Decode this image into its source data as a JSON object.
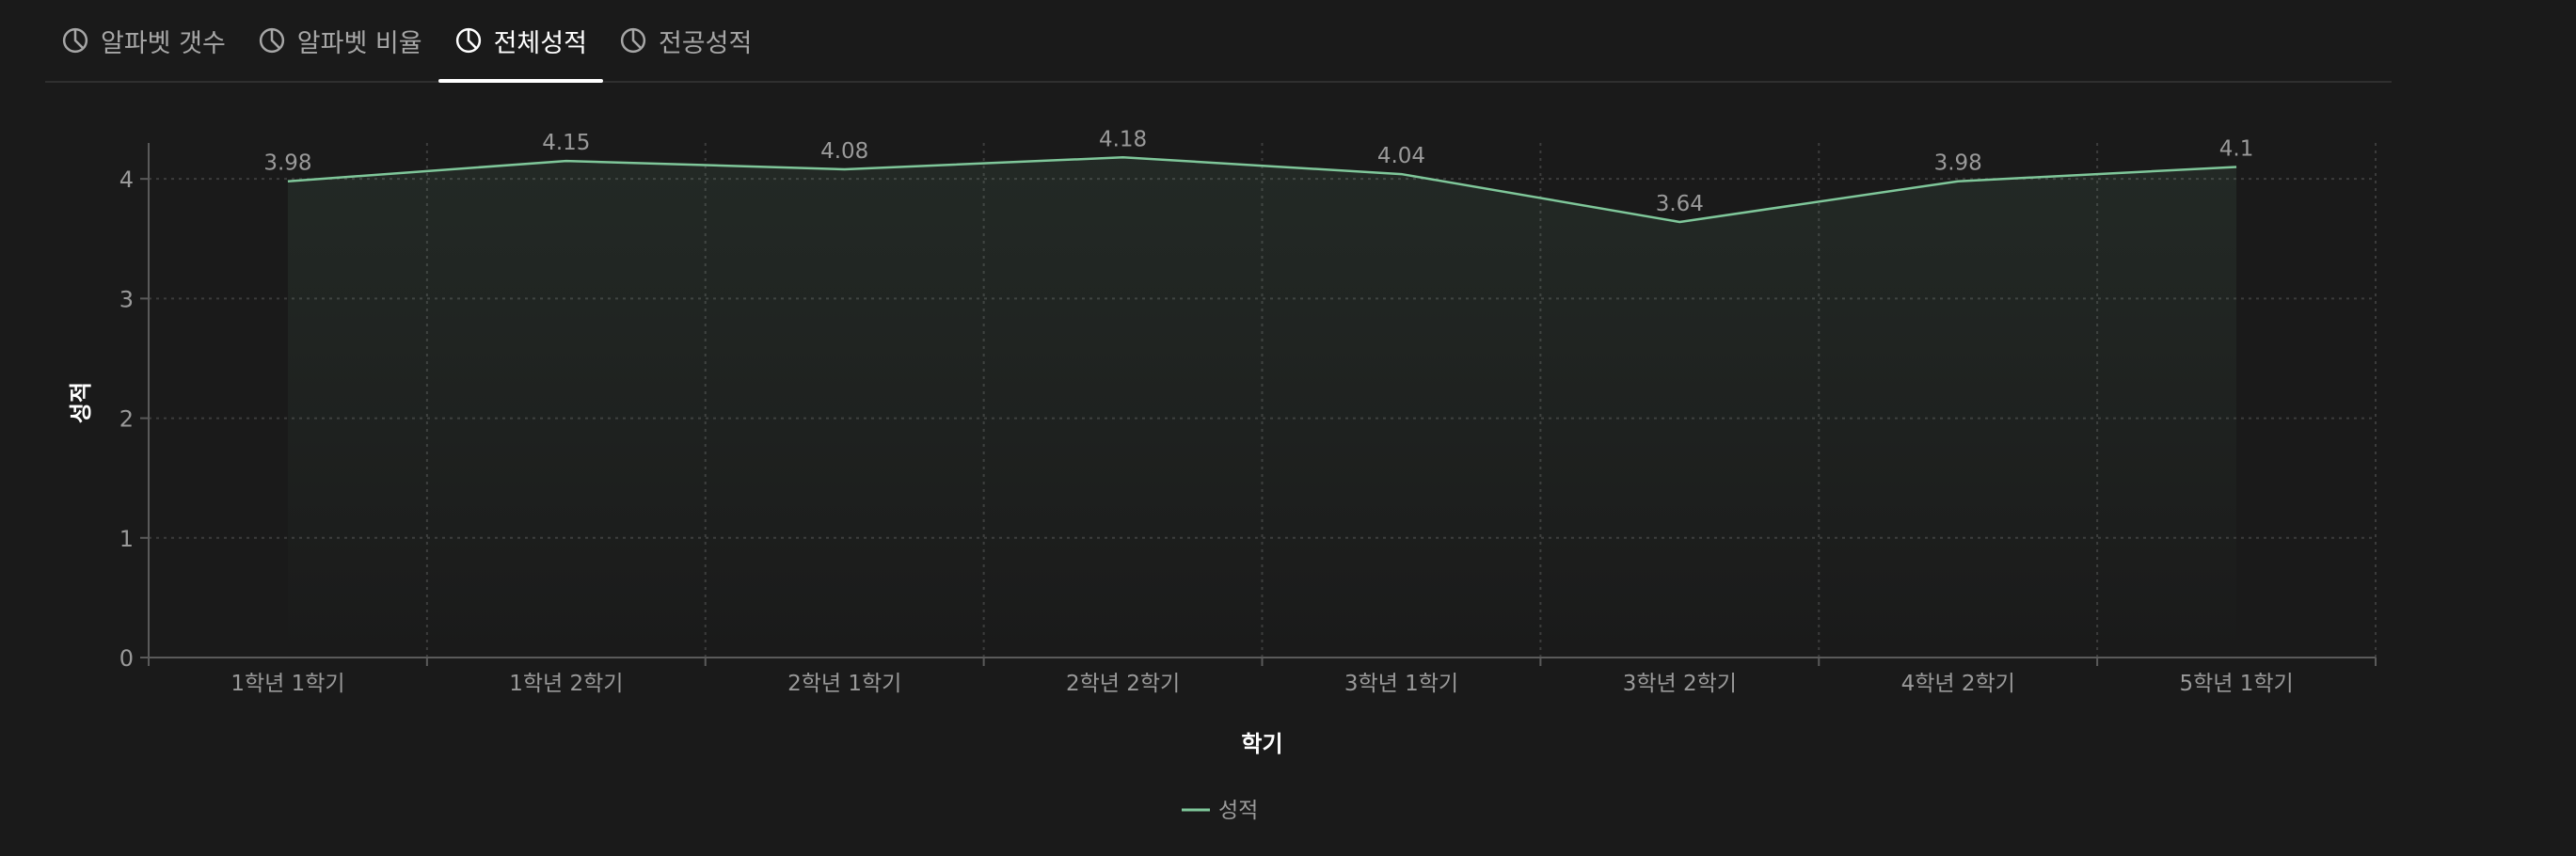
{
  "tabs": [
    {
      "label": "알파벳 갯수",
      "icon": "pie-chart-icon",
      "active": false
    },
    {
      "label": "알파벳 비율",
      "icon": "pie-chart-icon",
      "active": false
    },
    {
      "label": "전체성적",
      "icon": "pie-chart-icon",
      "active": true
    },
    {
      "label": "전공성적",
      "icon": "pie-chart-icon",
      "active": false
    }
  ],
  "colors": {
    "background": "#1a1a1a",
    "line": "#7fc79a",
    "grid": "#3c3c3c",
    "text": "#9a9a9a",
    "axis_title": "#ffffff"
  },
  "chart_data": {
    "type": "area",
    "categories": [
      "1학년 1학기",
      "1학년 2학기",
      "2학년 1학기",
      "2학년 2학기",
      "3학년 1학기",
      "3학년 2학기",
      "4학년 2학기",
      "5학년 1학기"
    ],
    "series": [
      {
        "name": "성적",
        "values": [
          3.98,
          4.15,
          4.08,
          4.18,
          4.04,
          3.64,
          3.98,
          4.1
        ]
      }
    ],
    "value_labels": [
      "3.98",
      "4.15",
      "4.08",
      "4.18",
      "4.04",
      "3.64",
      "3.98",
      "4.1"
    ],
    "xlabel": "학기",
    "ylabel": "성적",
    "ylim": [
      0,
      4.3
    ],
    "yticks": [
      0,
      1,
      2,
      3,
      4
    ],
    "grid": true,
    "legend": "bottom-center"
  }
}
